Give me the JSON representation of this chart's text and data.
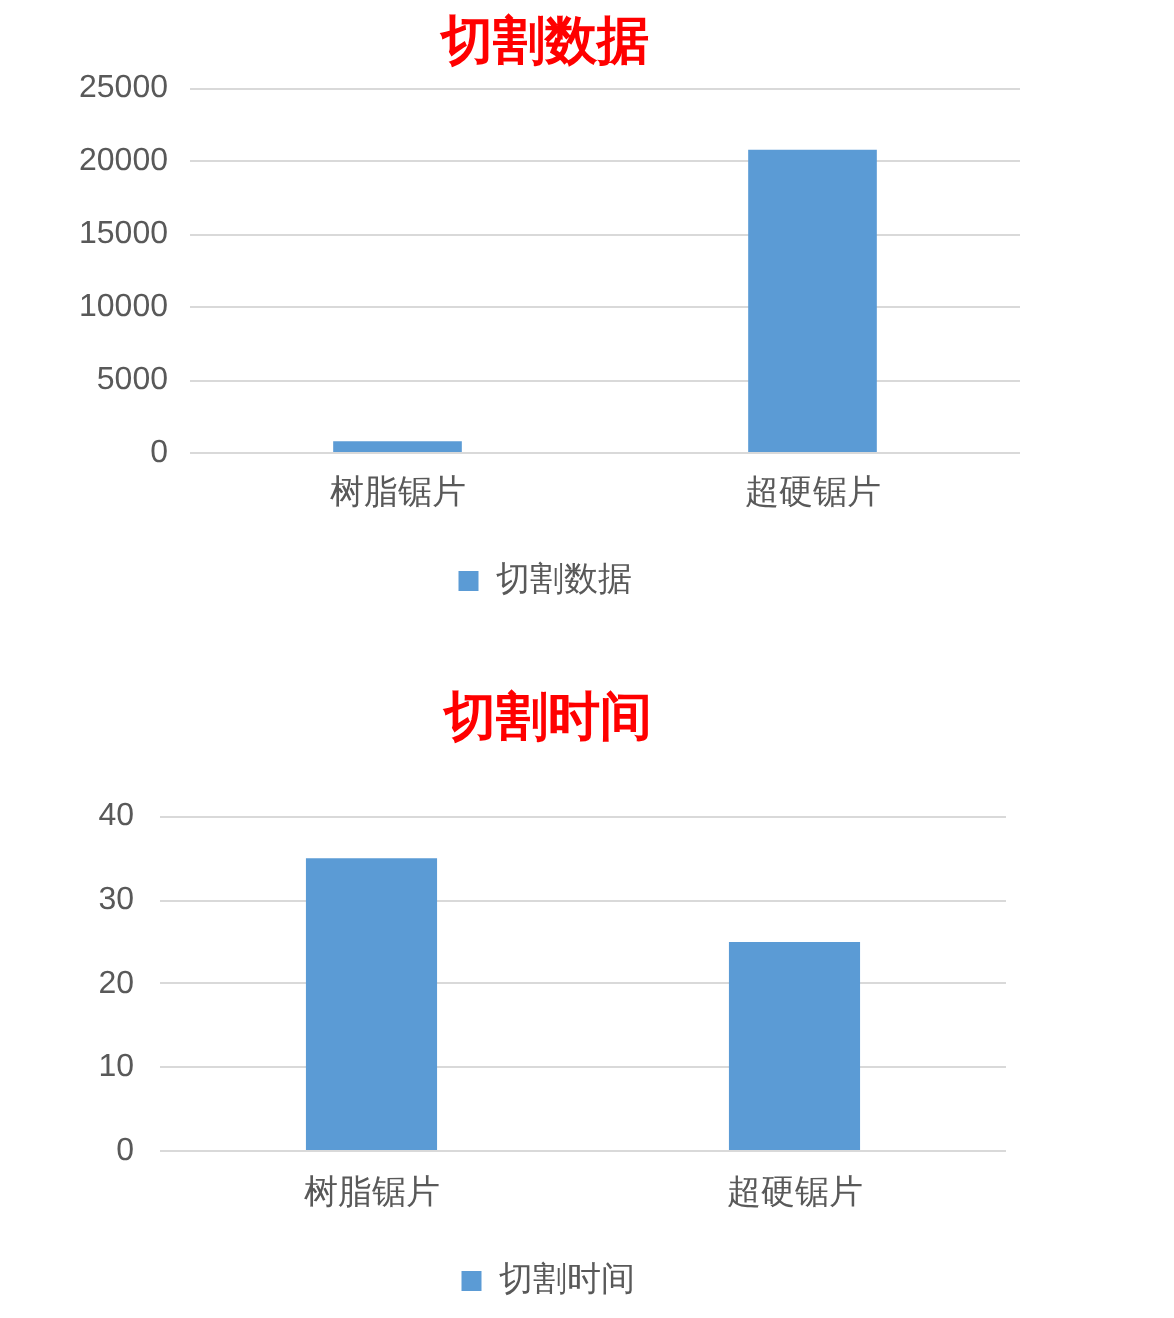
{
  "chart_data": [
    {
      "type": "bar",
      "title": "切割数据",
      "categories": [
        "树脂锯片",
        "超硬锯片"
      ],
      "series": [
        {
          "name": "切割数据",
          "color": "#5b9bd5",
          "values": [
            800,
            20800
          ]
        }
      ],
      "ylim": [
        0,
        25000
      ],
      "yticks": [
        0,
        5000,
        10000,
        15000,
        20000,
        25000
      ],
      "grid": "y",
      "legend": "bottom"
    },
    {
      "type": "bar",
      "title": "切割时间",
      "categories": [
        "树脂锯片",
        "超硬锯片"
      ],
      "series": [
        {
          "name": "切割时间",
          "color": "#5b9bd5",
          "values": [
            35,
            25
          ]
        }
      ],
      "ylim": [
        0,
        40
      ],
      "yticks": [
        0,
        10,
        20,
        30,
        40
      ],
      "grid": "y",
      "legend": "bottom"
    }
  ]
}
